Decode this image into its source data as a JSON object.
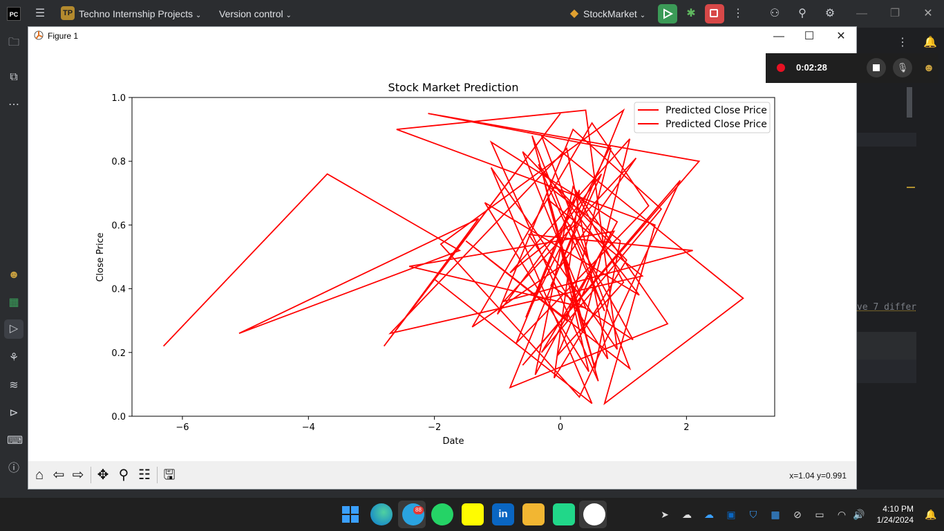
{
  "ide": {
    "logo_text": "PC",
    "project_badge": "TP",
    "project_name": "Techno Internship Projects",
    "vcs_menu": "Version control",
    "run_config": "StockMarket"
  },
  "sidebar": {
    "icons": [
      "folder-icon",
      "structure-icon",
      "more-icon",
      "avatar-icon",
      "excel-icon",
      "run-icon",
      "python-console-icon",
      "layers-icon",
      "services-icon",
      "terminal-icon",
      "problems-icon",
      "git-icon"
    ]
  },
  "figure": {
    "window_title": "Figure 1",
    "coord_readout": "x=1.04 y=0.991"
  },
  "chart_data": {
    "type": "line",
    "title": "Stock Market Prediction",
    "xlabel": "Date",
    "ylabel": "Close Price",
    "xlim": [
      -6.8,
      3.4
    ],
    "ylim": [
      0.0,
      1.0
    ],
    "xticks": [
      "−6",
      "−4",
      "−2",
      "0",
      "2"
    ],
    "yticks": [
      "0.0",
      "0.2",
      "0.4",
      "0.6",
      "0.8",
      "1.0"
    ],
    "legend_position": "top-right",
    "series": [
      {
        "name": "Predicted Close Price",
        "color": "#ff0000",
        "x": [
          -6.3,
          -3.7,
          -1.6,
          -5.1,
          -1.3,
          -2.8,
          0.0,
          -2.0,
          0.5,
          -1.1,
          0.9,
          0.4,
          -2.6,
          1.5,
          0.7,
          2.9,
          -0.3,
          1.1,
          -1.5,
          0.1,
          0.8,
          -2.1,
          2.2,
          -0.6,
          1.9,
          0.3,
          -1.9,
          1.0,
          -0.8,
          1.7,
          0.2,
          -0.4,
          0.9,
          -1.1,
          0.6,
          -0.2,
          1.3,
          -2.7,
          0.1,
          0.75,
          -0.5,
          2.1,
          -0.9,
          1.2,
          0.0,
          -1.4,
          0.5,
          1.4,
          -0.7,
          0.3,
          -0.1,
          1.05,
          -0.6,
          0.4,
          -2.4,
          0.85,
          -0.3,
          1.6,
          0.2,
          -1.0,
          0.65,
          -0.15,
          1.15,
          0.05,
          -0.45,
          0.55,
          0.95,
          -0.25,
          0.35,
          1.1,
          -0.8,
          0.15,
          0.7,
          -0.35,
          1.25,
          -1.2,
          0.45,
          0.0,
          0.8,
          -0.55,
          0.25,
          1.0,
          -0.05,
          0.6
        ],
        "y": [
          0.22,
          0.76,
          0.52,
          0.26,
          0.62,
          0.22,
          0.95,
          0.43,
          0.04,
          0.78,
          0.21,
          0.96,
          0.9,
          0.6,
          0.04,
          0.37,
          0.88,
          0.15,
          0.55,
          0.3,
          0.84,
          0.95,
          0.8,
          0.16,
          0.74,
          0.06,
          0.54,
          0.96,
          0.09,
          0.29,
          0.72,
          0.13,
          0.61,
          0.86,
          0.11,
          0.68,
          0.44,
          0.26,
          0.84,
          0.18,
          0.57,
          0.52,
          0.36,
          0.81,
          0.47,
          0.28,
          0.92,
          0.66,
          0.23,
          0.71,
          0.12,
          0.49,
          0.83,
          0.34,
          0.47,
          0.58,
          0.2,
          0.65,
          0.9,
          0.32,
          0.76,
          0.41,
          0.24,
          0.63,
          0.88,
          0.15,
          0.55,
          0.73,
          0.27,
          0.87,
          0.45,
          0.6,
          0.33,
          0.79,
          0.38,
          0.67,
          0.14,
          0.53,
          0.85,
          0.31,
          0.7,
          0.42,
          0.19,
          0.5
        ]
      },
      {
        "name": "Predicted Close Price",
        "color": "#ff0000",
        "x": [],
        "y": []
      }
    ]
  },
  "recorder": {
    "elapsed": "0:02:28"
  },
  "editor": {
    "code_fragment": "ve 7 differ"
  },
  "taskbar": {
    "apps": [
      "windows-start-icon",
      "edge-icon",
      "telegram-icon",
      "whatsapp-icon",
      "snapchat-icon",
      "linkedin-icon",
      "file-explorer-icon",
      "pycharm-icon",
      "python-figure-icon"
    ],
    "telegram_badge": "88",
    "time": "4:10 PM",
    "date": "1/24/2024"
  }
}
